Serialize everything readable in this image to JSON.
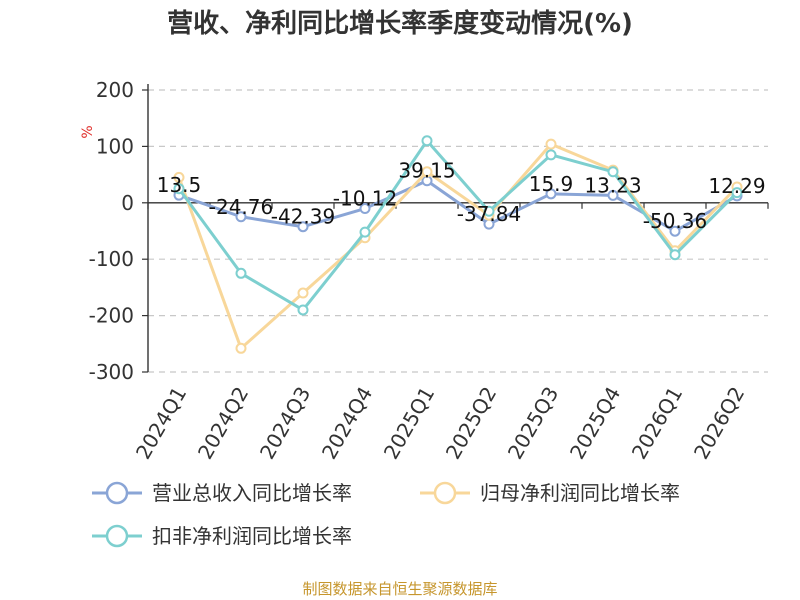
{
  "chart_data": {
    "type": "line",
    "title": "营收、净利同比增长率季度变动情况(%)",
    "ylabel": "%",
    "ylim": [
      -300,
      200
    ],
    "yticks": [
      200,
      100,
      0,
      -100,
      -200,
      -300
    ],
    "grid": true,
    "legend_position": "bottom",
    "categories": [
      "2024Q1",
      "2024Q2",
      "2024Q3",
      "2024Q4",
      "2025Q1",
      "2025Q2",
      "2025Q3",
      "2025Q4",
      "2026Q1",
      "2026Q2"
    ],
    "series": [
      {
        "name": "营业总收入同比增长率",
        "color": "#8aa5d6",
        "values": [
          13.5,
          -24.76,
          -42.39,
          -10.12,
          39.15,
          -37.84,
          15.9,
          13.23,
          -50.36,
          12.29
        ],
        "labels": [
          "13.5",
          "-24.76",
          "-42.39",
          "-10.12",
          "39.15",
          "-37.84",
          "15.9",
          "13.23",
          "-50.36",
          "12.29"
        ]
      },
      {
        "name": "归母净利润同比增长率",
        "color": "#f8d79a",
        "values": [
          45,
          -258,
          -160,
          -62,
          55,
          -22,
          104,
          58,
          -85,
          28
        ]
      },
      {
        "name": "扣非净利润同比增长率",
        "color": "#7dcfcf",
        "values": [
          25,
          -125,
          -190,
          -52,
          110,
          -15,
          85,
          55,
          -92,
          18
        ]
      }
    ],
    "source": "制图数据来自恒生聚源数据库"
  }
}
